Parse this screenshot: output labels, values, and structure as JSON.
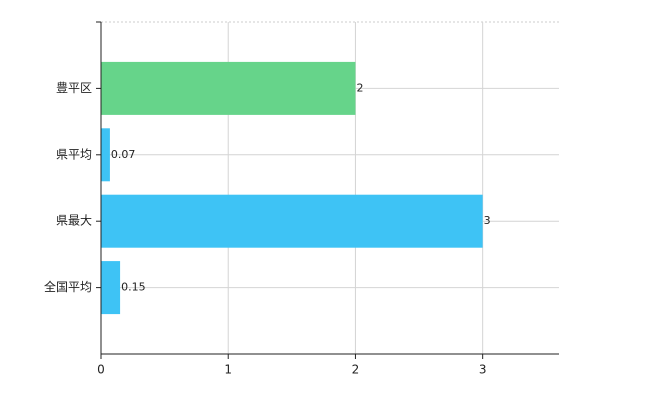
{
  "chart_data": {
    "type": "bar",
    "orientation": "horizontal",
    "categories": [
      "豊平区",
      "県平均",
      "県最大",
      "全国平均"
    ],
    "values": [
      2,
      0.07,
      3,
      0.15
    ],
    "colors": [
      "#66d48a",
      "#3ec3f5",
      "#3ec3f5",
      "#3ec3f5"
    ],
    "xlim": [
      0,
      3.6
    ],
    "xticks": [
      0,
      1,
      2,
      3
    ],
    "grid": true
  }
}
